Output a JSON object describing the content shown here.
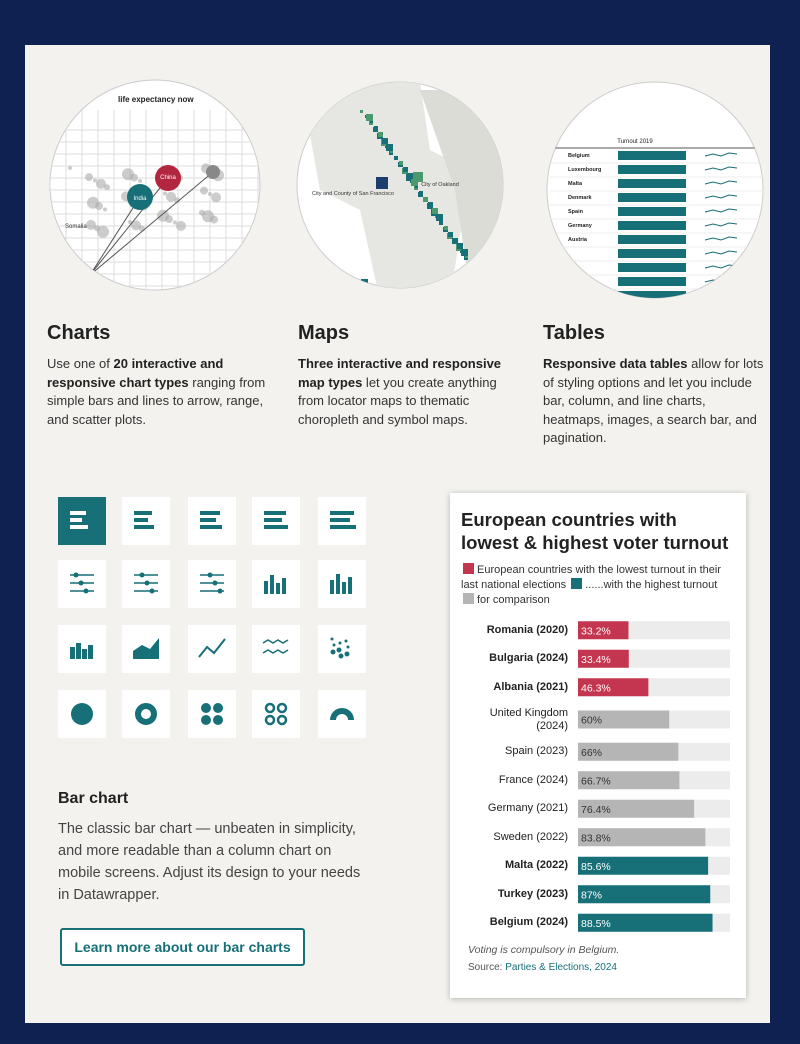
{
  "features": [
    {
      "title": "Charts",
      "parts": [
        {
          "text": "Use one of "
        },
        {
          "text": "20 interactive and responsive chart types",
          "bold": true
        },
        {
          "text": " ranging from simple bars and lines to arrow, range, and scatter plots."
        }
      ],
      "thumb_labels": [
        "life expectancy now",
        "China",
        "India",
        "Somalia"
      ]
    },
    {
      "title": "Maps",
      "parts": [
        {
          "text": "Three interactive and responsive map types",
          "bold": true
        },
        {
          "text": " let you create anything from locator maps to thematic choropleth and symbol maps."
        }
      ],
      "thumb_labels": [
        "City and County of San Francisco",
        "City of Oakland"
      ]
    },
    {
      "title": "Tables",
      "parts": [
        {
          "text": "Responsive data tables",
          "bold": true
        },
        {
          "text": " allow for lots of styling options and let you include bar, column, and line charts, heatmaps, images, a search bar, and pagination."
        }
      ],
      "thumb_labels": [
        "Turnout 2019",
        "Belgium",
        "Luxembourg",
        "Malta",
        "Denmark",
        "Spain",
        "Germany",
        "Austria"
      ]
    }
  ],
  "bar_section": {
    "title": "Bar chart",
    "text": "The classic bar chart — unbeaten in simplicity, and more readable than a column chart on mobile screens. Adjust its design to your needs in Datawrapper.",
    "button": "Learn more about our bar charts"
  },
  "chart_data": {
    "type": "bar",
    "title": "European countries with lowest & highest voter turnout",
    "legend": [
      {
        "label": "European countries with the lowest turnout in their last national elections",
        "color": "#c4364f"
      },
      {
        "label": "......with the highest turnout",
        "color": "#176f78"
      },
      {
        "label": "for comparison",
        "color": "#b5b5b5"
      }
    ],
    "categories": [
      "Romania (2020)",
      "Bulgaria (2024)",
      "Albania (2021)",
      "United Kingdom (2024)",
      "Spain (2023)",
      "France (2024)",
      "Germany (2021)",
      "Sweden (2022)",
      "Malta (2022)",
      "Turkey (2023)",
      "Belgium (2024)"
    ],
    "values": [
      33.2,
      33.4,
      46.3,
      60,
      66,
      66.7,
      76.4,
      83.8,
      85.6,
      87,
      88.5
    ],
    "value_labels": [
      "33.2%",
      "33.4%",
      "46.3%",
      "60%",
      "66%",
      "66.7%",
      "76.4%",
      "83.8%",
      "85.6%",
      "87%",
      "88.5%"
    ],
    "colors": [
      "#c4364f",
      "#c4364f",
      "#c4364f",
      "#b5b5b5",
      "#b5b5b5",
      "#b5b5b5",
      "#b5b5b5",
      "#b5b5b5",
      "#176f78",
      "#176f78",
      "#176f78"
    ],
    "xlim": [
      0,
      100
    ],
    "note": "Voting is compulsory in Belgium.",
    "source_label": "Source:",
    "source": "Parties & Elections, 2024"
  }
}
